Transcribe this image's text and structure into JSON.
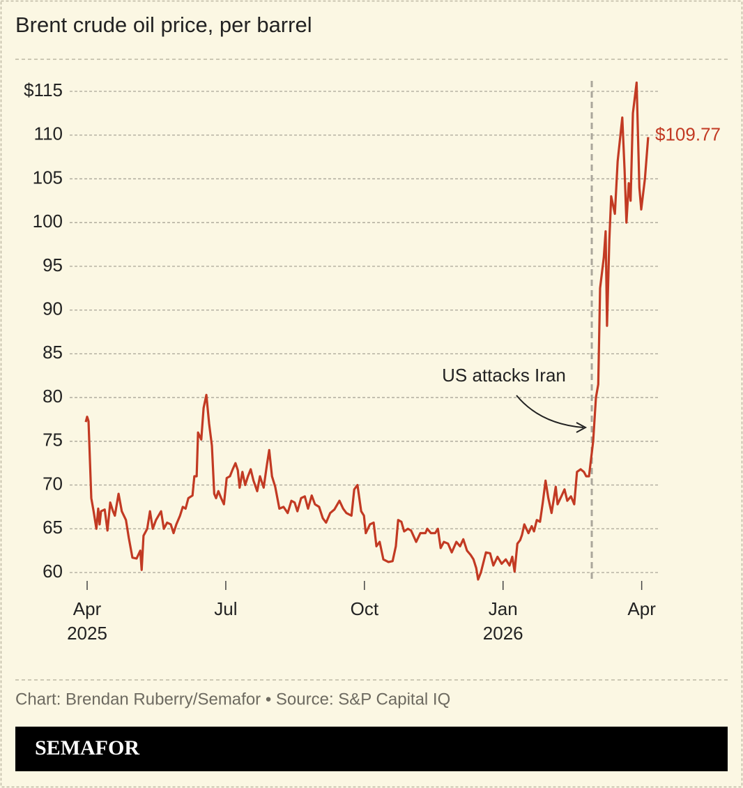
{
  "chart_data": {
    "type": "line",
    "title": "Brent crude oil price, per barrel",
    "x": [
      -0.03,
      0,
      0.03,
      0.09,
      0.14,
      0.2,
      0.24,
      0.27,
      0.3,
      0.38,
      0.44,
      0.5,
      0.56,
      0.6,
      0.68,
      0.75,
      0.84,
      0.9,
      0.98,
      1.07,
      1.15,
      1.18,
      1.22,
      1.3,
      1.36,
      1.42,
      1.49,
      1.6,
      1.66,
      1.73,
      1.81,
      1.87,
      1.93,
      2.01,
      2.07,
      2.13,
      2.19,
      2.28,
      2.32,
      2.37,
      2.4,
      2.47,
      2.52,
      2.58,
      2.64,
      2.7,
      2.75,
      2.79,
      2.84,
      2.9,
      2.96,
      3.02,
      3.09,
      3.15,
      3.21,
      3.26,
      3.3,
      3.36,
      3.42,
      3.48,
      3.54,
      3.6,
      3.68,
      3.74,
      3.82,
      3.89,
      3.94,
      4,
      4.07,
      4.16,
      4.25,
      4.34,
      4.42,
      4.49,
      4.55,
      4.63,
      4.71,
      4.78,
      4.86,
      4.93,
      5.02,
      5.1,
      5.17,
      5.26,
      5.35,
      5.46,
      5.54,
      5.61,
      5.72,
      5.78,
      5.85,
      5.93,
      5.99,
      6.03,
      6.12,
      6.2,
      6.26,
      6.33,
      6.41,
      6.52,
      6.61,
      6.68,
      6.73,
      6.8,
      6.86,
      6.94,
      7.01,
      7.12,
      7.21,
      7.32,
      7.36,
      7.44,
      7.53,
      7.59,
      7.65,
      7.72,
      7.81,
      7.89,
      7.99,
      8.07,
      8.14,
      8.22,
      8.3,
      8.36,
      8.42,
      8.46,
      8.52,
      8.63,
      8.72,
      8.79,
      8.88,
      8.97,
      9.06,
      9.14,
      9.2,
      9.25,
      9.31,
      9.37,
      9.41,
      9.46,
      9.55,
      9.62,
      9.67,
      9.73,
      9.8,
      9.86,
      9.92,
      9.98,
      10.05,
      10.14,
      10.18,
      10.27,
      10.33,
      10.39,
      10.47,
      10.54,
      10.6,
      10.68,
      10.75,
      10.8,
      10.86,
      10.95,
      11.01,
      11.06,
      11.1,
      11.18,
      11.22,
      11.25,
      11.3,
      11.34,
      11.42,
      11.48,
      11.54,
      11.58,
      11.63,
      11.67,
      11.72,
      11.76,
      11.81,
      11.89,
      11.95,
      11.99,
      12.07,
      12.14
    ],
    "series": [
      {
        "name": "Brent crude",
        "color": "#c23a23",
        "values": [
          77.2,
          77.8,
          77.3,
          68.5,
          67,
          65,
          67.3,
          65.5,
          67,
          67.2,
          64.8,
          68,
          67,
          66.5,
          69,
          67,
          66,
          64,
          61.7,
          61.6,
          62.5,
          60.3,
          64.2,
          65,
          67,
          65,
          66,
          67,
          65,
          65.7,
          65.5,
          64.5,
          65.5,
          66.5,
          67.5,
          67.3,
          68.5,
          68.8,
          71,
          71,
          76,
          75.2,
          78.8,
          80.3,
          77,
          74.5,
          69,
          68.5,
          69.3,
          68.5,
          67.8,
          70.8,
          71,
          71.8,
          72.5,
          71.7,
          69.7,
          71.5,
          70,
          71,
          71.8,
          70.5,
          69.3,
          71,
          69.7,
          72.3,
          74,
          71,
          69.8,
          67.3,
          67.5,
          66.8,
          68.2,
          68,
          67,
          68.5,
          68.7,
          67.3,
          68.8,
          67.8,
          67.5,
          66.2,
          65.7,
          66.8,
          67.2,
          68.2,
          67.3,
          66.8,
          66.5,
          69.5,
          70,
          67,
          66.5,
          64.5,
          65.5,
          65.7,
          63,
          63.5,
          61.5,
          61.2,
          61.3,
          63,
          66,
          65.8,
          64.7,
          65,
          64.8,
          63.5,
          64.5,
          64.5,
          65,
          64.5,
          64.5,
          65,
          62.8,
          63.5,
          63.3,
          62.3,
          63.5,
          63,
          63.8,
          62.5,
          62,
          61.5,
          60.5,
          59.2,
          60,
          62.3,
          62.2,
          60.8,
          61.8,
          61,
          61.5,
          60.8,
          61.8,
          60.1,
          63.3,
          63.7,
          64.3,
          65.5,
          64.5,
          65.3,
          64.7,
          66,
          65.8,
          68,
          70.5,
          68.5,
          66.8,
          69.8,
          67.8,
          68.8,
          69.5,
          68.2,
          68.7,
          67.8,
          71.5,
          71.8,
          71.5,
          71,
          71,
          75,
          80,
          81.5,
          92.5,
          96,
          99,
          88.2,
          98,
          103,
          101,
          107,
          110,
          112,
          106,
          100,
          104.5,
          102.5,
          112.5,
          116,
          104,
          101.5,
          105,
          109.77
        ]
      }
    ],
    "end_label": "$109.77",
    "xlim": [
      -0.05,
      12.2
    ],
    "xticks": [
      {
        "value": 0,
        "label": "Apr",
        "year": "2025"
      },
      {
        "value": 3,
        "label": "Jul"
      },
      {
        "value": 6,
        "label": "Oct"
      },
      {
        "value": 9,
        "label": "Jan",
        "year": "2026"
      },
      {
        "value": 12,
        "label": "Apr"
      }
    ],
    "ylim": [
      58.5,
      117
    ],
    "yticks": [
      60,
      65,
      70,
      75,
      80,
      85,
      90,
      95,
      100,
      105,
      110,
      {
        "value": 115,
        "label": "$115"
      }
    ],
    "grid": true,
    "event": {
      "x": 10.92,
      "label": "US attacks Iran"
    },
    "source": "Chart: Brendan Ruberry/Semafor • Source: S&P Capital IQ",
    "brand": "SEMAFOR"
  }
}
